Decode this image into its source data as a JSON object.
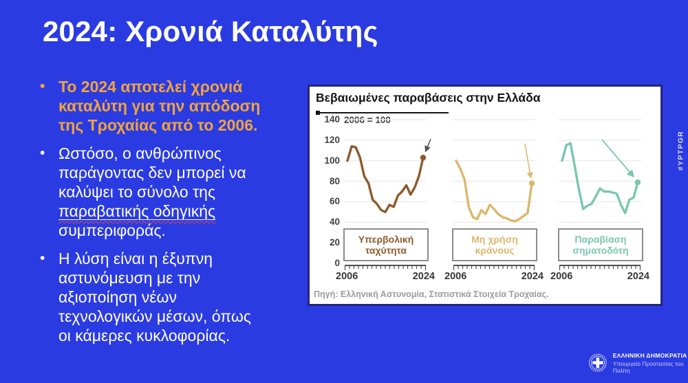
{
  "colors": {
    "background": "#2B3BE2",
    "title_text": "#FFFFFF",
    "bullet_highlight": "#F1A43C",
    "bullet_text": "#FFFFFF",
    "panel_border": "#24247C",
    "panel_bg": "#FFFFFF",
    "gridline": "#EBEBEB",
    "axis_text": "#3F3F3F",
    "comb_color": "#4F4F4F",
    "source_text": "#9B9B9B",
    "spellcheck_squiggle": "#E0483E"
  },
  "slide": {
    "title": "2024: Χρονιά Καταλύτης",
    "hashtag": "#YPTPGR",
    "bullet_marker": "•",
    "bullets": [
      {
        "style": "highlight",
        "text": "Το 2024 αποτελεί χρονιά\nκαταλύτη για την απόδοση\nτης Τροχαίας από το 2006."
      },
      {
        "style": "normal",
        "text_before": "Ωστόσο, ο ανθρώπινος\nπαράγοντας δεν μπορεί να\nκαλύψει το σύνολο της\n",
        "underlined": "παραβατικής οδηγικής",
        "text_after": "\nσυμπεριφοράς."
      },
      {
        "style": "normal",
        "text": "Η λύση είναι η έξυπνη\nαστυνόμευση με την\nαξιοποίηση νέων\nτεχνολογικών μέσων, όπως\nοι κάμερες κυκλοφορίας."
      }
    ],
    "footer": {
      "org": "ΕΛΛΗΝΙΚΗ ΔΗΜΟΚΡΑΤΙΑ",
      "dept": "Υπουργείο Προστασίας του Πολίτη"
    }
  },
  "chart_data": {
    "type": "line",
    "title": "Βεβαιωμένες παραβάσεις στην Ελλάδα",
    "index_note": "2006 = 100",
    "source": "Πηγή: Ελληνική Αστυνομία, Στατιστικά Στοιχεία Τροχαίας.",
    "x": [
      2006,
      2007,
      2008,
      2009,
      2010,
      2011,
      2012,
      2013,
      2014,
      2015,
      2016,
      2017,
      2018,
      2019,
      2020,
      2021,
      2022,
      2023,
      2024
    ],
    "x_end_labels": [
      "2006",
      "2024"
    ],
    "y_ticks": [
      140,
      120,
      100,
      80,
      60,
      40,
      20,
      0
    ],
    "grid_ticks": [
      140,
      120,
      100,
      80,
      60,
      40
    ],
    "ylim": [
      0,
      140
    ],
    "grid": true,
    "legend_position": "boxed-labels-inside-panels",
    "series": [
      {
        "name": "Υπερβολική ταχύτητα",
        "label_lines": "Υπερβολική\nταχύτητα",
        "color": "#8E5B2C",
        "arrow_color": "#55504A",
        "values": [
          100,
          114,
          113,
          103,
          85,
          78,
          62,
          58,
          52,
          50,
          57,
          55,
          66,
          70,
          76,
          67,
          74,
          85,
          103
        ]
      },
      {
        "name": "Μη χρήση κράνους",
        "label_lines": "Μη χρήση\nκράνους",
        "color": "#DCB76C",
        "arrow_color": "#DCB76C",
        "values": [
          100,
          92,
          82,
          55,
          45,
          43,
          52,
          48,
          57,
          53,
          48,
          45,
          44,
          42,
          41,
          43,
          46,
          49,
          78
        ]
      },
      {
        "name": "Παραβίαση σηματοδότη",
        "label_lines": "Παραβίαση\nσηματοδότη",
        "color": "#79C7AE",
        "arrow_color": "#79C7AE",
        "values": [
          100,
          115,
          117,
          95,
          72,
          53,
          56,
          58,
          65,
          73,
          70,
          70,
          69,
          68,
          57,
          49,
          62,
          64,
          79
        ]
      }
    ]
  }
}
